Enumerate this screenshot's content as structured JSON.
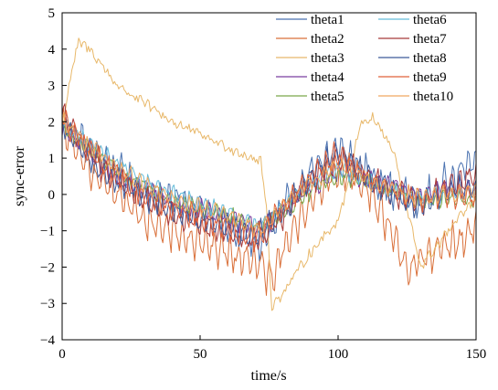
{
  "chart_data": {
    "type": "line",
    "xlabel": "time/s",
    "ylabel": "sync-error",
    "xlim": [
      0,
      150
    ],
    "ylim": [
      -4,
      5
    ],
    "xticks": [
      0,
      50,
      100,
      150
    ],
    "yticks": [
      -4,
      -3,
      -2,
      -1,
      0,
      1,
      2,
      3,
      4,
      5
    ],
    "grid": false,
    "legend_position": "top-right",
    "legend_columns": 2,
    "series": [
      {
        "name": "theta1",
        "color": "#4a72b0",
        "osc_amp": 0.45,
        "noise": 0.15,
        "points": [
          [
            0,
            2.1
          ],
          [
            10,
            1.2
          ],
          [
            30,
            0.1
          ],
          [
            50,
            -0.4
          ],
          [
            60,
            -0.9
          ],
          [
            72,
            -1.4
          ],
          [
            80,
            -0.4
          ],
          [
            90,
            0.6
          ],
          [
            100,
            1.3
          ],
          [
            110,
            0.6
          ],
          [
            120,
            0.1
          ],
          [
            130,
            -0.2
          ],
          [
            140,
            0.4
          ],
          [
            150,
            1.0
          ]
        ]
      },
      {
        "name": "theta2",
        "color": "#d9703a",
        "osc_amp": 0.5,
        "noise": 0.18,
        "points": [
          [
            0,
            1.9
          ],
          [
            10,
            0.7
          ],
          [
            30,
            -0.7
          ],
          [
            50,
            -1.3
          ],
          [
            60,
            -1.6
          ],
          [
            70,
            -1.8
          ],
          [
            76,
            -2.4
          ],
          [
            80,
            -1.5
          ],
          [
            90,
            -0.2
          ],
          [
            100,
            0.7
          ],
          [
            110,
            0.3
          ],
          [
            120,
            -1.2
          ],
          [
            126,
            -2.1
          ],
          [
            135,
            -1.5
          ],
          [
            145,
            -1.3
          ],
          [
            150,
            -0.9
          ]
        ]
      },
      {
        "name": "theta3",
        "color": "#e8b86a",
        "osc_amp": 0.06,
        "noise": 0.12,
        "points": [
          [
            0,
            1.8
          ],
          [
            3,
            3.2
          ],
          [
            6,
            4.2
          ],
          [
            10,
            4.0
          ],
          [
            20,
            3.0
          ],
          [
            40,
            2.0
          ],
          [
            60,
            1.3
          ],
          [
            72,
            0.9
          ],
          [
            74,
            -0.3
          ],
          [
            76,
            -3.1
          ],
          [
            80,
            -2.7
          ],
          [
            90,
            -1.6
          ],
          [
            100,
            -0.7
          ],
          [
            105,
            0.7
          ],
          [
            108,
            2.0
          ],
          [
            113,
            2.1
          ],
          [
            120,
            1.2
          ],
          [
            125,
            -0.4
          ],
          [
            130,
            -2.0
          ],
          [
            140,
            -1.0
          ],
          [
            150,
            -0.1
          ]
        ]
      },
      {
        "name": "theta4",
        "color": "#7b3fa0",
        "osc_amp": 0.25,
        "noise": 0.1,
        "points": [
          [
            0,
            1.8
          ],
          [
            20,
            0.5
          ],
          [
            40,
            -0.2
          ],
          [
            60,
            -0.6
          ],
          [
            72,
            -1.0
          ],
          [
            80,
            -0.4
          ],
          [
            90,
            0.2
          ],
          [
            100,
            0.6
          ],
          [
            110,
            0.4
          ],
          [
            120,
            0.2
          ],
          [
            130,
            0.0
          ],
          [
            140,
            0.2
          ],
          [
            150,
            0.1
          ]
        ]
      },
      {
        "name": "theta5",
        "color": "#7aa84a",
        "osc_amp": 0.2,
        "noise": 0.1,
        "points": [
          [
            0,
            1.9
          ],
          [
            20,
            0.6
          ],
          [
            40,
            -0.2
          ],
          [
            60,
            -0.6
          ],
          [
            72,
            -0.9
          ],
          [
            80,
            -0.5
          ],
          [
            90,
            0.1
          ],
          [
            100,
            0.5
          ],
          [
            110,
            0.4
          ],
          [
            120,
            0.1
          ],
          [
            130,
            -0.2
          ],
          [
            140,
            -0.1
          ],
          [
            150,
            -0.2
          ]
        ]
      },
      {
        "name": "theta6",
        "color": "#66bcd9",
        "osc_amp": 0.2,
        "noise": 0.1,
        "points": [
          [
            0,
            2.0
          ],
          [
            20,
            0.8
          ],
          [
            40,
            0.0
          ],
          [
            60,
            -0.5
          ],
          [
            72,
            -0.9
          ],
          [
            80,
            -0.3
          ],
          [
            90,
            0.3
          ],
          [
            100,
            0.7
          ],
          [
            110,
            0.4
          ],
          [
            120,
            0.1
          ],
          [
            130,
            -0.1
          ],
          [
            140,
            0.0
          ],
          [
            150,
            0.0
          ]
        ]
      },
      {
        "name": "theta7",
        "color": "#a83a3a",
        "osc_amp": 0.35,
        "noise": 0.15,
        "points": [
          [
            0,
            2.2
          ],
          [
            15,
            0.7
          ],
          [
            35,
            -0.4
          ],
          [
            55,
            -0.9
          ],
          [
            70,
            -1.3
          ],
          [
            80,
            -0.6
          ],
          [
            90,
            0.4
          ],
          [
            100,
            1.0
          ],
          [
            110,
            0.5
          ],
          [
            120,
            0.0
          ],
          [
            130,
            -0.2
          ],
          [
            140,
            0.2
          ],
          [
            150,
            0.5
          ]
        ]
      },
      {
        "name": "theta8",
        "color": "#3c5a99",
        "osc_amp": 0.35,
        "noise": 0.12,
        "points": [
          [
            0,
            1.9
          ],
          [
            15,
            0.6
          ],
          [
            35,
            -0.3
          ],
          [
            55,
            -0.8
          ],
          [
            70,
            -1.2
          ],
          [
            80,
            -0.5
          ],
          [
            90,
            0.5
          ],
          [
            100,
            1.2
          ],
          [
            110,
            0.5
          ],
          [
            120,
            0.0
          ],
          [
            130,
            -0.3
          ],
          [
            140,
            0.1
          ],
          [
            150,
            0.2
          ]
        ]
      },
      {
        "name": "theta9",
        "color": "#e0603a",
        "osc_amp": 0.3,
        "noise": 0.15,
        "points": [
          [
            0,
            2.1
          ],
          [
            15,
            0.8
          ],
          [
            35,
            -0.3
          ],
          [
            55,
            -0.8
          ],
          [
            70,
            -1.2
          ],
          [
            80,
            -0.4
          ],
          [
            90,
            0.5
          ],
          [
            100,
            1.1
          ],
          [
            110,
            0.5
          ],
          [
            120,
            0.1
          ],
          [
            130,
            -0.2
          ],
          [
            140,
            0.0
          ],
          [
            150,
            -0.1
          ]
        ]
      },
      {
        "name": "theta10",
        "color": "#f0a860",
        "osc_amp": 0.22,
        "noise": 0.1,
        "points": [
          [
            0,
            2.0
          ],
          [
            20,
            0.7
          ],
          [
            40,
            -0.1
          ],
          [
            60,
            -0.6
          ],
          [
            72,
            -1.0
          ],
          [
            80,
            -0.3
          ],
          [
            90,
            0.3
          ],
          [
            100,
            0.8
          ],
          [
            110,
            0.4
          ],
          [
            120,
            0.1
          ],
          [
            130,
            -0.1
          ],
          [
            140,
            0.0
          ],
          [
            150,
            0.1
          ]
        ]
      }
    ]
  }
}
